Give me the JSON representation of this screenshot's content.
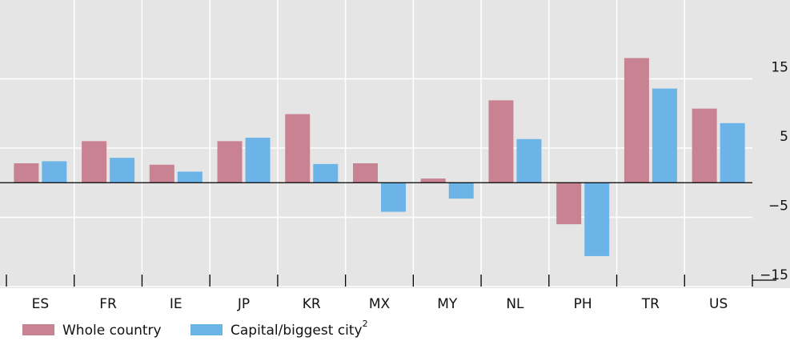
{
  "chart_data": {
    "type": "bar",
    "categories": [
      "ES",
      "FR",
      "IE",
      "JP",
      "KR",
      "MX",
      "MY",
      "NL",
      "PH",
      "TR",
      "US"
    ],
    "series": [
      {
        "name": "Whole country",
        "color": "#c98292",
        "values": [
          2.8,
          6.0,
          2.6,
          6.0,
          9.9,
          2.8,
          0.6,
          11.9,
          -6.0,
          18.0,
          10.7
        ]
      },
      {
        "name": "Capital/biggest city",
        "footnote_marker": "2",
        "color": "#6cb4e8",
        "values": [
          3.1,
          3.6,
          1.6,
          6.5,
          2.7,
          -4.2,
          -2.3,
          6.3,
          -10.6,
          13.6,
          8.6
        ]
      }
    ],
    "ylim": [
      -15,
      25
    ],
    "yticks": [
      {
        "value": -15,
        "label": "−15"
      },
      {
        "value": -5,
        "label": "−5"
      },
      5,
      15
    ],
    "grid": true
  }
}
